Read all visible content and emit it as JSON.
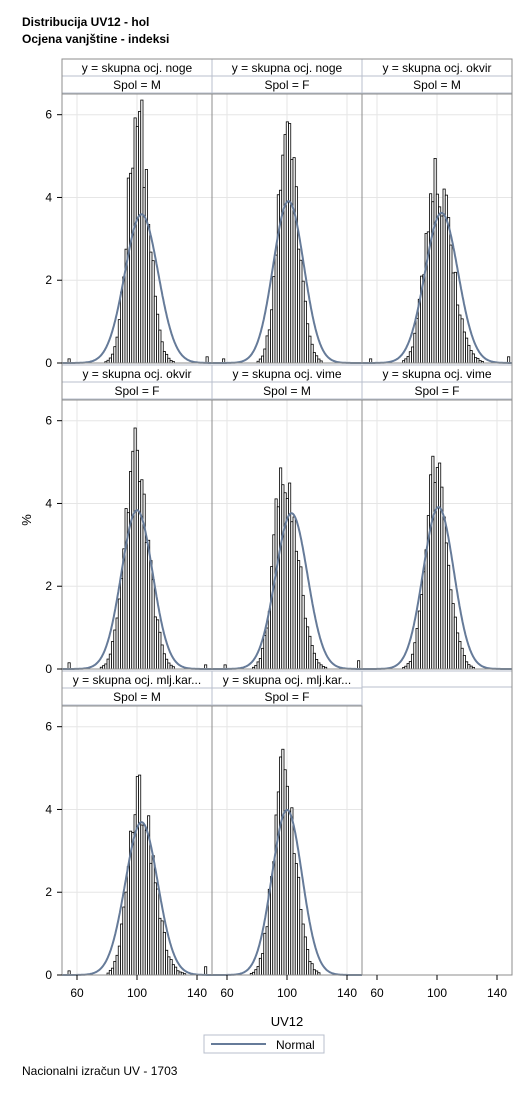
{
  "title_line1": "Distribucija UV12 - hol",
  "title_line2": "Ocjena vanjštine - indeksi",
  "footnote": "Nacionalni izračun UV - 1703",
  "colors": {
    "bar_fill": "#ffffff",
    "bar_stroke": "#000000",
    "normal_curve": "#667b99",
    "grid": "#e6e6e6",
    "header_fill": "#ffffff",
    "header_stroke": "#b8bfcc"
  },
  "chart_data": {
    "type": "bar",
    "title": "Distribucija UV12 - hol",
    "subtitle": "Ocjena vanjštine - indeksi",
    "xlabel": "UV12",
    "ylabel": "%",
    "xlim": [
      50,
      150
    ],
    "ylim": [
      0,
      6.5
    ],
    "x_ticks": [
      60,
      100,
      140
    ],
    "y_ticks": [
      0,
      2,
      4,
      6
    ],
    "grid": true,
    "legend": {
      "position": "bottom",
      "entries": [
        "Normal"
      ]
    },
    "panels": [
      {
        "header": "y = skupna ocj. noge",
        "sub": "Spol = M",
        "mean": 103,
        "sd": 11.1,
        "peak": 6.3,
        "center": 100,
        "spread": 7.0,
        "left_tail": 2.7,
        "right_tail": 3.2,
        "bump": 0.4,
        "extremes": [
          [
            54,
            0.1
          ],
          [
            146,
            0.15
          ]
        ]
      },
      {
        "header": "y = skupna ocj. noge",
        "sub": "Spol = F",
        "mean": 101,
        "sd": 10.2,
        "peak": 5.6,
        "center": 100,
        "spread": 7.2,
        "left_tail": 2.6,
        "right_tail": 3.1,
        "bump": 0.3,
        "extremes": [
          [
            57,
            0.1
          ]
        ]
      },
      {
        "header": "y = skupna ocj. okvir",
        "sub": "Spol = M",
        "mean": 103,
        "sd": 11.0,
        "peak": 4.7,
        "center": 99,
        "spread": 8.5,
        "left_tail": 2.5,
        "right_tail": 3.6,
        "bump": 0.4,
        "extremes": [
          [
            55,
            0.1
          ],
          [
            147,
            0.15
          ]
        ]
      },
      {
        "header": "y = skupna ocj. okvir",
        "sub": "Spol = F",
        "mean": 100,
        "sd": 10.4,
        "peak": 5.3,
        "center": 99,
        "spread": 7.6,
        "left_tail": 2.9,
        "right_tail": 3.3,
        "bump": 0.3,
        "extremes": [
          [
            54,
            0.15
          ],
          [
            145,
            0.1
          ]
        ]
      },
      {
        "header": "y = skupna ocj. vime",
        "sub": "Spol = M",
        "mean": 103,
        "sd": 10.6,
        "peak": 5.05,
        "center": 98,
        "spread": 7.6,
        "left_tail": 2.6,
        "right_tail": 3.5,
        "bump": 0.4,
        "extremes": [
          [
            58,
            0.1
          ],
          [
            147,
            0.2
          ]
        ]
      },
      {
        "header": "y = skupna ocj. vime",
        "sub": "Spol = F",
        "mean": 101,
        "sd": 10.2,
        "peak": 5.05,
        "center": 99,
        "spread": 7.4,
        "left_tail": 2.7,
        "right_tail": 3.3,
        "bump": 0.3,
        "extremes": []
      },
      {
        "header": "y = skupna ocj. mlj.kar...",
        "sub": "Spol = M",
        "mean": 103,
        "sd": 10.8,
        "peak": 4.35,
        "center": 101,
        "spread": 8.2,
        "left_tail": 2.5,
        "right_tail": 3.6,
        "bump": 0.35,
        "extremes": [
          [
            54,
            0.1
          ],
          [
            145,
            0.2
          ]
        ]
      },
      {
        "header": "y = skupna ocj. mlj.kar...",
        "sub": "Spol = F",
        "mean": 100,
        "sd": 10.0,
        "peak": 5.05,
        "center": 98,
        "spread": 7.4,
        "left_tail": 2.8,
        "right_tail": 3.1,
        "bump": 0.25,
        "extremes": []
      }
    ]
  }
}
